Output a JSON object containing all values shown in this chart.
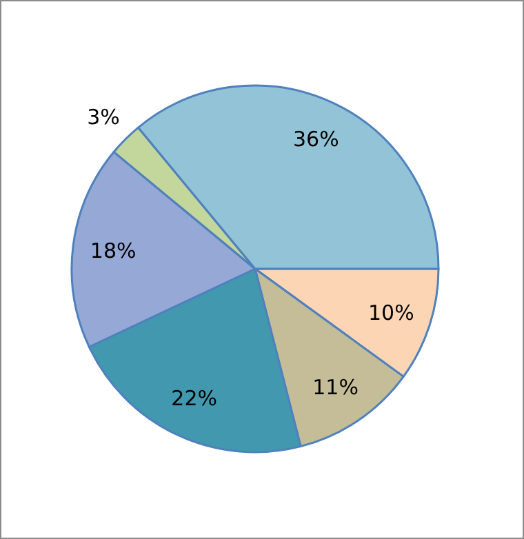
{
  "chart_data": {
    "type": "pie",
    "categories": [
      null,
      null,
      null,
      null,
      null,
      null
    ],
    "values": [
      10,
      11,
      22,
      18,
      3,
      36
    ],
    "value_labels": [
      "10%",
      "11%",
      "22%",
      "18%",
      "3%",
      "36%"
    ],
    "colors": [
      "#fcd5b5",
      "#c4bd97",
      "#4198af",
      "#95a8d6",
      "#c3d69b",
      "#93c3d6"
    ]
  }
}
